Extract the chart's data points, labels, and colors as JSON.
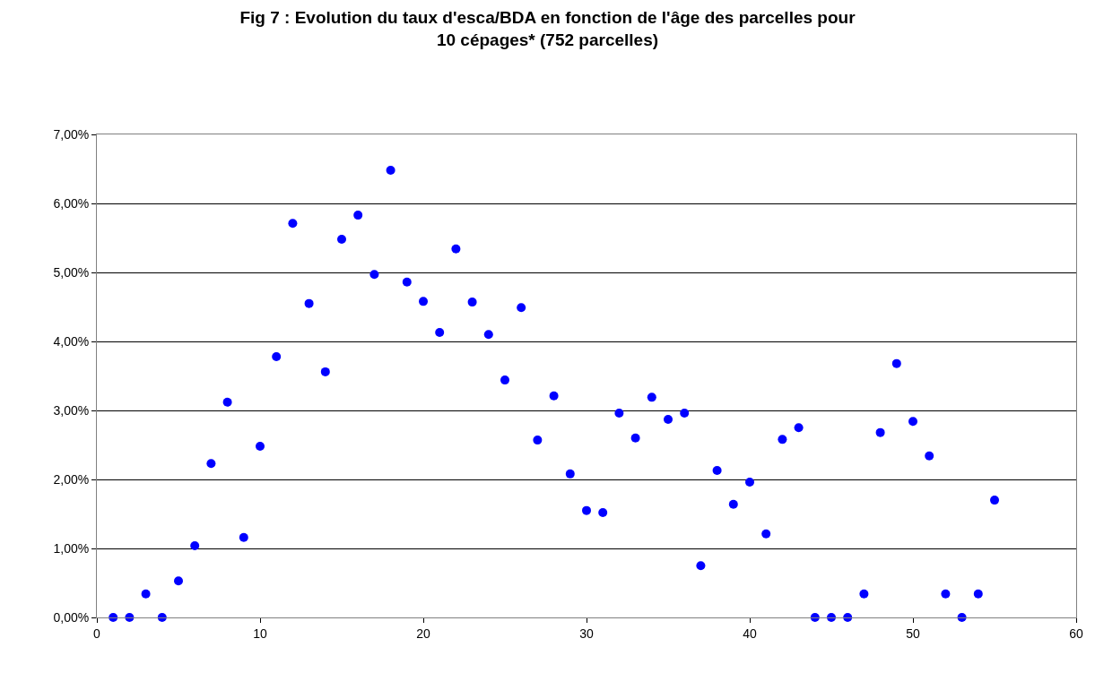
{
  "chart_data": {
    "type": "scatter",
    "title": "Fig 7 : Evolution du taux d'esca/BDA en fonction de l'âge des parcelles pour\n10 cépages* (752 parcelles)",
    "x": [
      1,
      2,
      3,
      4,
      5,
      6,
      7,
      8,
      9,
      10,
      11,
      12,
      13,
      14,
      15,
      16,
      17,
      18,
      19,
      20,
      21,
      22,
      23,
      24,
      25,
      26,
      27,
      28,
      29,
      30,
      31,
      32,
      33,
      34,
      35,
      36,
      37,
      38,
      39,
      40,
      41,
      42,
      43,
      44,
      45,
      46,
      47,
      48,
      49,
      50,
      51,
      52,
      53,
      54,
      55
    ],
    "series": [
      {
        "color": "#0000ff",
        "values": [
          0,
          0,
          0.34,
          0,
          0.53,
          1.04,
          2.23,
          3.12,
          1.16,
          2.48,
          3.78,
          5.71,
          4.55,
          3.56,
          5.48,
          5.83,
          4.97,
          6.48,
          4.86,
          4.58,
          4.13,
          5.34,
          4.57,
          4.1,
          3.44,
          4.49,
          2.57,
          3.21,
          2.08,
          1.55,
          1.52,
          2.96,
          2.6,
          3.19,
          2.87,
          2.96,
          0.75,
          2.13,
          1.64,
          1.96,
          1.21,
          2.58,
          2.75,
          0,
          0,
          0,
          0.34,
          2.68,
          3.68,
          2.84,
          2.34,
          0.34,
          0,
          0.34,
          1.7
        ]
      }
    ],
    "xlim": [
      0,
      60
    ],
    "xticks": [
      0,
      10,
      20,
      30,
      40,
      50,
      60
    ],
    "ylim": [
      0,
      7
    ],
    "yticks": [
      {
        "value": 0,
        "label": "0,00%"
      },
      {
        "value": 1,
        "label": "1,00%"
      },
      {
        "value": 2,
        "label": "2,00%"
      },
      {
        "value": 3,
        "label": "3,00%"
      },
      {
        "value": 4,
        "label": "4,00%"
      },
      {
        "value": 5,
        "label": "5,00%"
      },
      {
        "value": 6,
        "label": "6,00%"
      },
      {
        "value": 7,
        "label": "7,00%"
      }
    ],
    "grid": "y",
    "marker": "circle"
  }
}
